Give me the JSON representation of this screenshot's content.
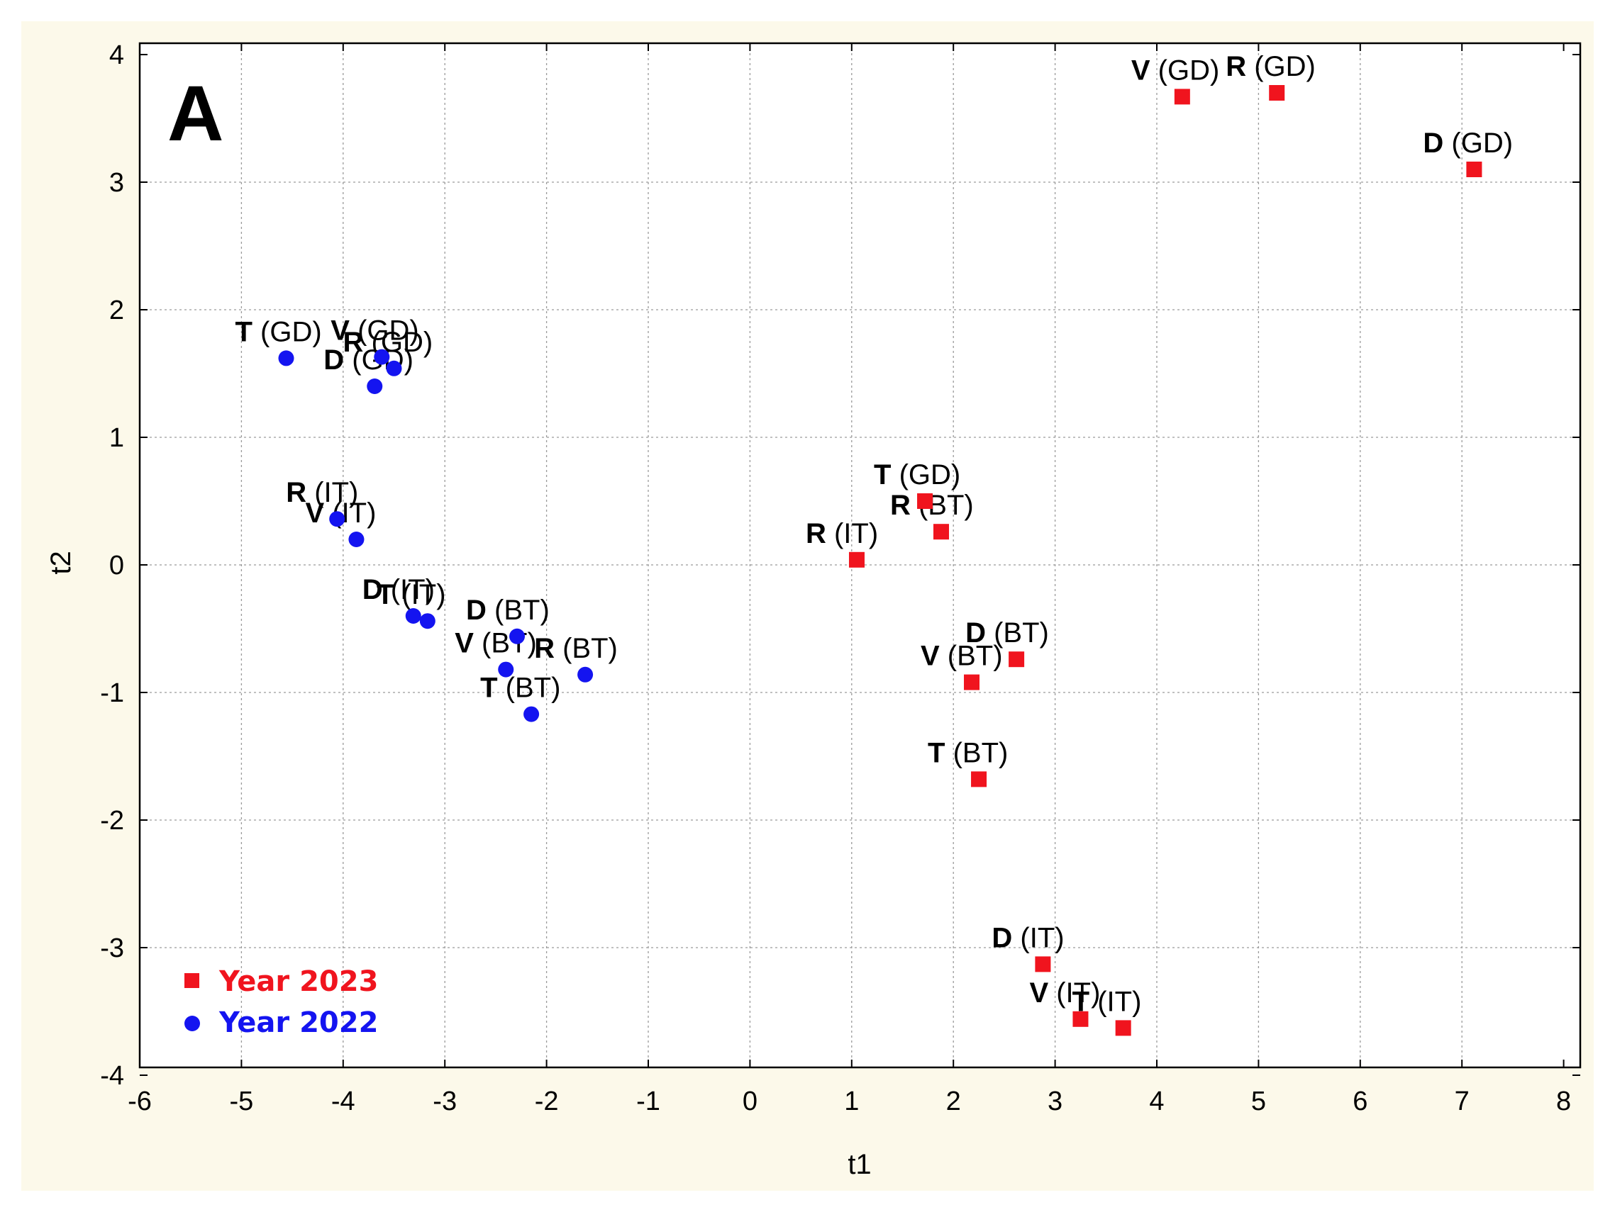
{
  "chart_data": {
    "type": "scatter",
    "panel_label": "A",
    "xlabel": "t1",
    "ylabel": "t2",
    "xlim": [
      -6,
      8
    ],
    "ylim": [
      -4,
      4
    ],
    "x_ticks": [
      "-6",
      "-5",
      "-4",
      "-3",
      "-2",
      "-1",
      "0",
      "1",
      "2",
      "3",
      "4",
      "5",
      "6",
      "7",
      "8"
    ],
    "y_ticks": [
      "-4",
      "-3",
      "-2",
      "-1",
      "0",
      "1",
      "2",
      "3",
      "4"
    ],
    "grid": true,
    "legend_position": "bottom-left",
    "series": [
      {
        "name": "Year 2023",
        "color": "#f0141e",
        "marker": "square",
        "points": [
          {
            "code": "V",
            "group": "(GD)",
            "x": 4.25,
            "y": 3.67
          },
          {
            "code": "R",
            "group": "(GD)",
            "x": 5.18,
            "y": 3.7
          },
          {
            "code": "D",
            "group": "(GD)",
            "x": 7.12,
            "y": 3.1
          },
          {
            "code": "T",
            "group": "(GD)",
            "x": 1.72,
            "y": 0.5
          },
          {
            "code": "R",
            "group": "(BT)",
            "x": 1.88,
            "y": 0.26
          },
          {
            "code": "R",
            "group": "(IT)",
            "x": 1.05,
            "y": 0.04
          },
          {
            "code": "D",
            "group": "(BT)",
            "x": 2.62,
            "y": -0.74
          },
          {
            "code": "V",
            "group": "(BT)",
            "x": 2.18,
            "y": -0.92
          },
          {
            "code": "T",
            "group": "(BT)",
            "x": 2.25,
            "y": -1.68
          },
          {
            "code": "D",
            "group": "(IT)",
            "x": 2.88,
            "y": -3.13
          },
          {
            "code": "V",
            "group": "(IT)",
            "x": 3.25,
            "y": -3.56
          },
          {
            "code": "T",
            "group": "(IT)",
            "x": 3.67,
            "y": -3.63
          }
        ]
      },
      {
        "name": "Year 2022",
        "color": "#1414f0",
        "marker": "circle",
        "points": [
          {
            "code": "T",
            "group": "(GD)",
            "x": -4.56,
            "y": 1.62
          },
          {
            "code": "V",
            "group": "(GD)",
            "x": -3.62,
            "y": 1.63
          },
          {
            "code": "R",
            "group": "(GD)",
            "x": -3.5,
            "y": 1.54
          },
          {
            "code": "D",
            "group": "(GD)",
            "x": -3.69,
            "y": 1.4
          },
          {
            "code": "R",
            "group": "(IT)",
            "x": -4.06,
            "y": 0.36
          },
          {
            "code": "V",
            "group": "(IT)",
            "x": -3.87,
            "y": 0.2
          },
          {
            "code": "D",
            "group": "(IT)",
            "x": -3.31,
            "y": -0.4
          },
          {
            "code": "T",
            "group": "(IT)",
            "x": -3.17,
            "y": -0.44
          },
          {
            "code": "D",
            "group": "(BT)",
            "x": -2.29,
            "y": -0.56
          },
          {
            "code": "V",
            "group": "(BT)",
            "x": -2.4,
            "y": -0.82
          },
          {
            "code": "R",
            "group": "(BT)",
            "x": -1.62,
            "y": -0.86
          },
          {
            "code": "T",
            "group": "(BT)",
            "x": -2.15,
            "y": -1.17
          }
        ]
      }
    ]
  }
}
